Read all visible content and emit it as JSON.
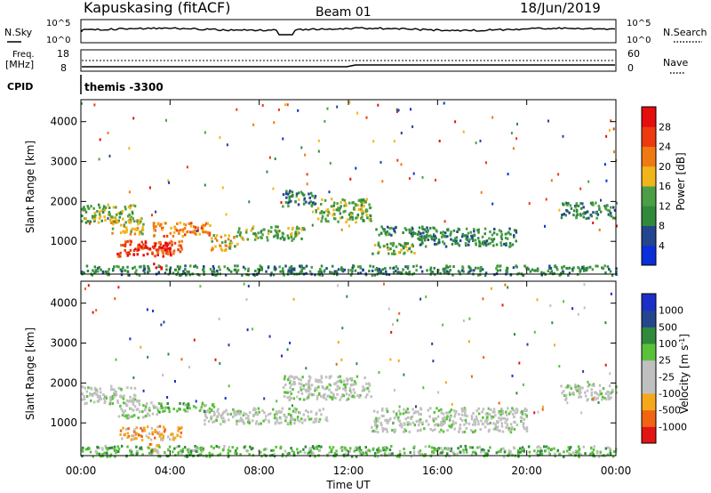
{
  "header": {
    "station": "Kapuskasing (fitACF)",
    "beam": "Beam 01",
    "date": "18/Jun/2019"
  },
  "sky_panel": {
    "left_label": "N.Sky",
    "left_ticks": [
      "10^5",
      "10^0"
    ],
    "right_label": "N.Search",
    "right_ticks": [
      "10^5",
      "10^0"
    ]
  },
  "freq_panel": {
    "left_label_1": "Freq.",
    "left_label_2": "[MHz]",
    "left_ticks": [
      "18",
      "8"
    ],
    "right_label": "Nave",
    "right_ticks": [
      "60",
      "0"
    ]
  },
  "cpid": {
    "label": "CPID",
    "value": "themis -3300"
  },
  "colors": {
    "power": [
      "#0a2fd9",
      "#23468f",
      "#2f8a3c",
      "#4c9e44",
      "#f0b51a",
      "#f07a12",
      "#ee3a10",
      "#e50d0d"
    ],
    "velocity": [
      "#e31414",
      "#f06414",
      "#f5a81c",
      "#c0c0c0",
      "#c0c0c0",
      "#59c23a",
      "#2f8a3c",
      "#23468f",
      "#1b2fc8"
    ]
  },
  "chart_data": [
    {
      "type": "heatmap",
      "name": "power",
      "xlabel": "",
      "ylabel": "Slant Range [km]",
      "xlim": [
        0,
        24
      ],
      "ylim": [
        180,
        4550
      ],
      "x_ticks": [
        "00:00",
        "04:00",
        "08:00",
        "12:00",
        "16:00",
        "20:00",
        "00:00"
      ],
      "y_ticks": [
        "1000",
        "2000",
        "3000",
        "4000"
      ],
      "colorbar_label": "Power [dB]",
      "colorbar_ticks": [
        "28",
        "24",
        "20",
        "16",
        "12",
        "8",
        "4"
      ],
      "regions": [
        {
          "x": [
            0.0,
            2.4
          ],
          "y": [
            1500,
            1950
          ],
          "level": 3
        },
        {
          "x": [
            1.2,
            2.8
          ],
          "y": [
            1200,
            1600
          ],
          "level": 4
        },
        {
          "x": [
            1.6,
            4.5
          ],
          "y": [
            650,
            1050
          ],
          "level": 6
        },
        {
          "x": [
            3.2,
            5.8
          ],
          "y": [
            1150,
            1500
          ],
          "level": 5
        },
        {
          "x": [
            2.5,
            4.0
          ],
          "y": [
            800,
            1000
          ],
          "level": 7
        },
        {
          "x": [
            3.2,
            3.6
          ],
          "y": [
            320,
            480
          ],
          "level": 7
        },
        {
          "x": [
            5.8,
            7.0
          ],
          "y": [
            800,
            1200
          ],
          "level": 4
        },
        {
          "x": [
            7.0,
            10.0
          ],
          "y": [
            1050,
            1400
          ],
          "level": 3
        },
        {
          "x": [
            9.0,
            10.5
          ],
          "y": [
            1900,
            2300
          ],
          "level": 2
        },
        {
          "x": [
            10.5,
            13.0
          ],
          "y": [
            1500,
            2100
          ],
          "level": 3
        },
        {
          "x": [
            13.0,
            15.0
          ],
          "y": [
            700,
            1000
          ],
          "level": 3
        },
        {
          "x": [
            13.2,
            16.0
          ],
          "y": [
            1150,
            1400
          ],
          "level": 2
        },
        {
          "x": [
            15.0,
            19.5
          ],
          "y": [
            900,
            1350
          ],
          "level": 2
        },
        {
          "x": [
            21.5,
            24.0
          ],
          "y": [
            1600,
            2000
          ],
          "level": 2
        },
        {
          "x": [
            0.0,
            24.0
          ],
          "y": [
            180,
            420
          ],
          "level": 2
        }
      ]
    },
    {
      "type": "heatmap",
      "name": "velocity",
      "xlabel": "Time UT",
      "ylabel": "Slant Range [km]",
      "xlim": [
        0,
        24
      ],
      "ylim": [
        180,
        4550
      ],
      "x_ticks": [
        "00:00",
        "04:00",
        "08:00",
        "12:00",
        "16:00",
        "20:00",
        "00:00"
      ],
      "y_ticks": [
        "1000",
        "2000",
        "3000",
        "4000"
      ],
      "colorbar_label": "Velocity [m s",
      "colorbar_label_sup": "-1",
      "colorbar_label_close": "]",
      "colorbar_ticks": [
        "1000",
        "500",
        "100",
        "25",
        "-25",
        "-100",
        "-500",
        "-1000"
      ],
      "regions": [
        {
          "x": [
            0.0,
            2.4
          ],
          "y": [
            1500,
            1950
          ],
          "level": 4
        },
        {
          "x": [
            1.6,
            3.4
          ],
          "y": [
            1150,
            1600
          ],
          "level": 4
        },
        {
          "x": [
            3.4,
            6.0
          ],
          "y": [
            1300,
            1550
          ],
          "level": 5
        },
        {
          "x": [
            1.6,
            4.5
          ],
          "y": [
            600,
            950
          ],
          "level": 2
        },
        {
          "x": [
            3.0,
            3.6
          ],
          "y": [
            300,
            500
          ],
          "level": 2
        },
        {
          "x": [
            5.5,
            11.0
          ],
          "y": [
            1000,
            1400
          ],
          "level": 4
        },
        {
          "x": [
            9.0,
            13.0
          ],
          "y": [
            1600,
            2200
          ],
          "level": 4
        },
        {
          "x": [
            13.0,
            20.0
          ],
          "y": [
            800,
            1400
          ],
          "level": 4
        },
        {
          "x": [
            21.5,
            24.0
          ],
          "y": [
            1600,
            2000
          ],
          "level": 4
        },
        {
          "x": [
            0.0,
            24.0
          ],
          "y": [
            180,
            450
          ],
          "level": 5
        }
      ]
    }
  ]
}
